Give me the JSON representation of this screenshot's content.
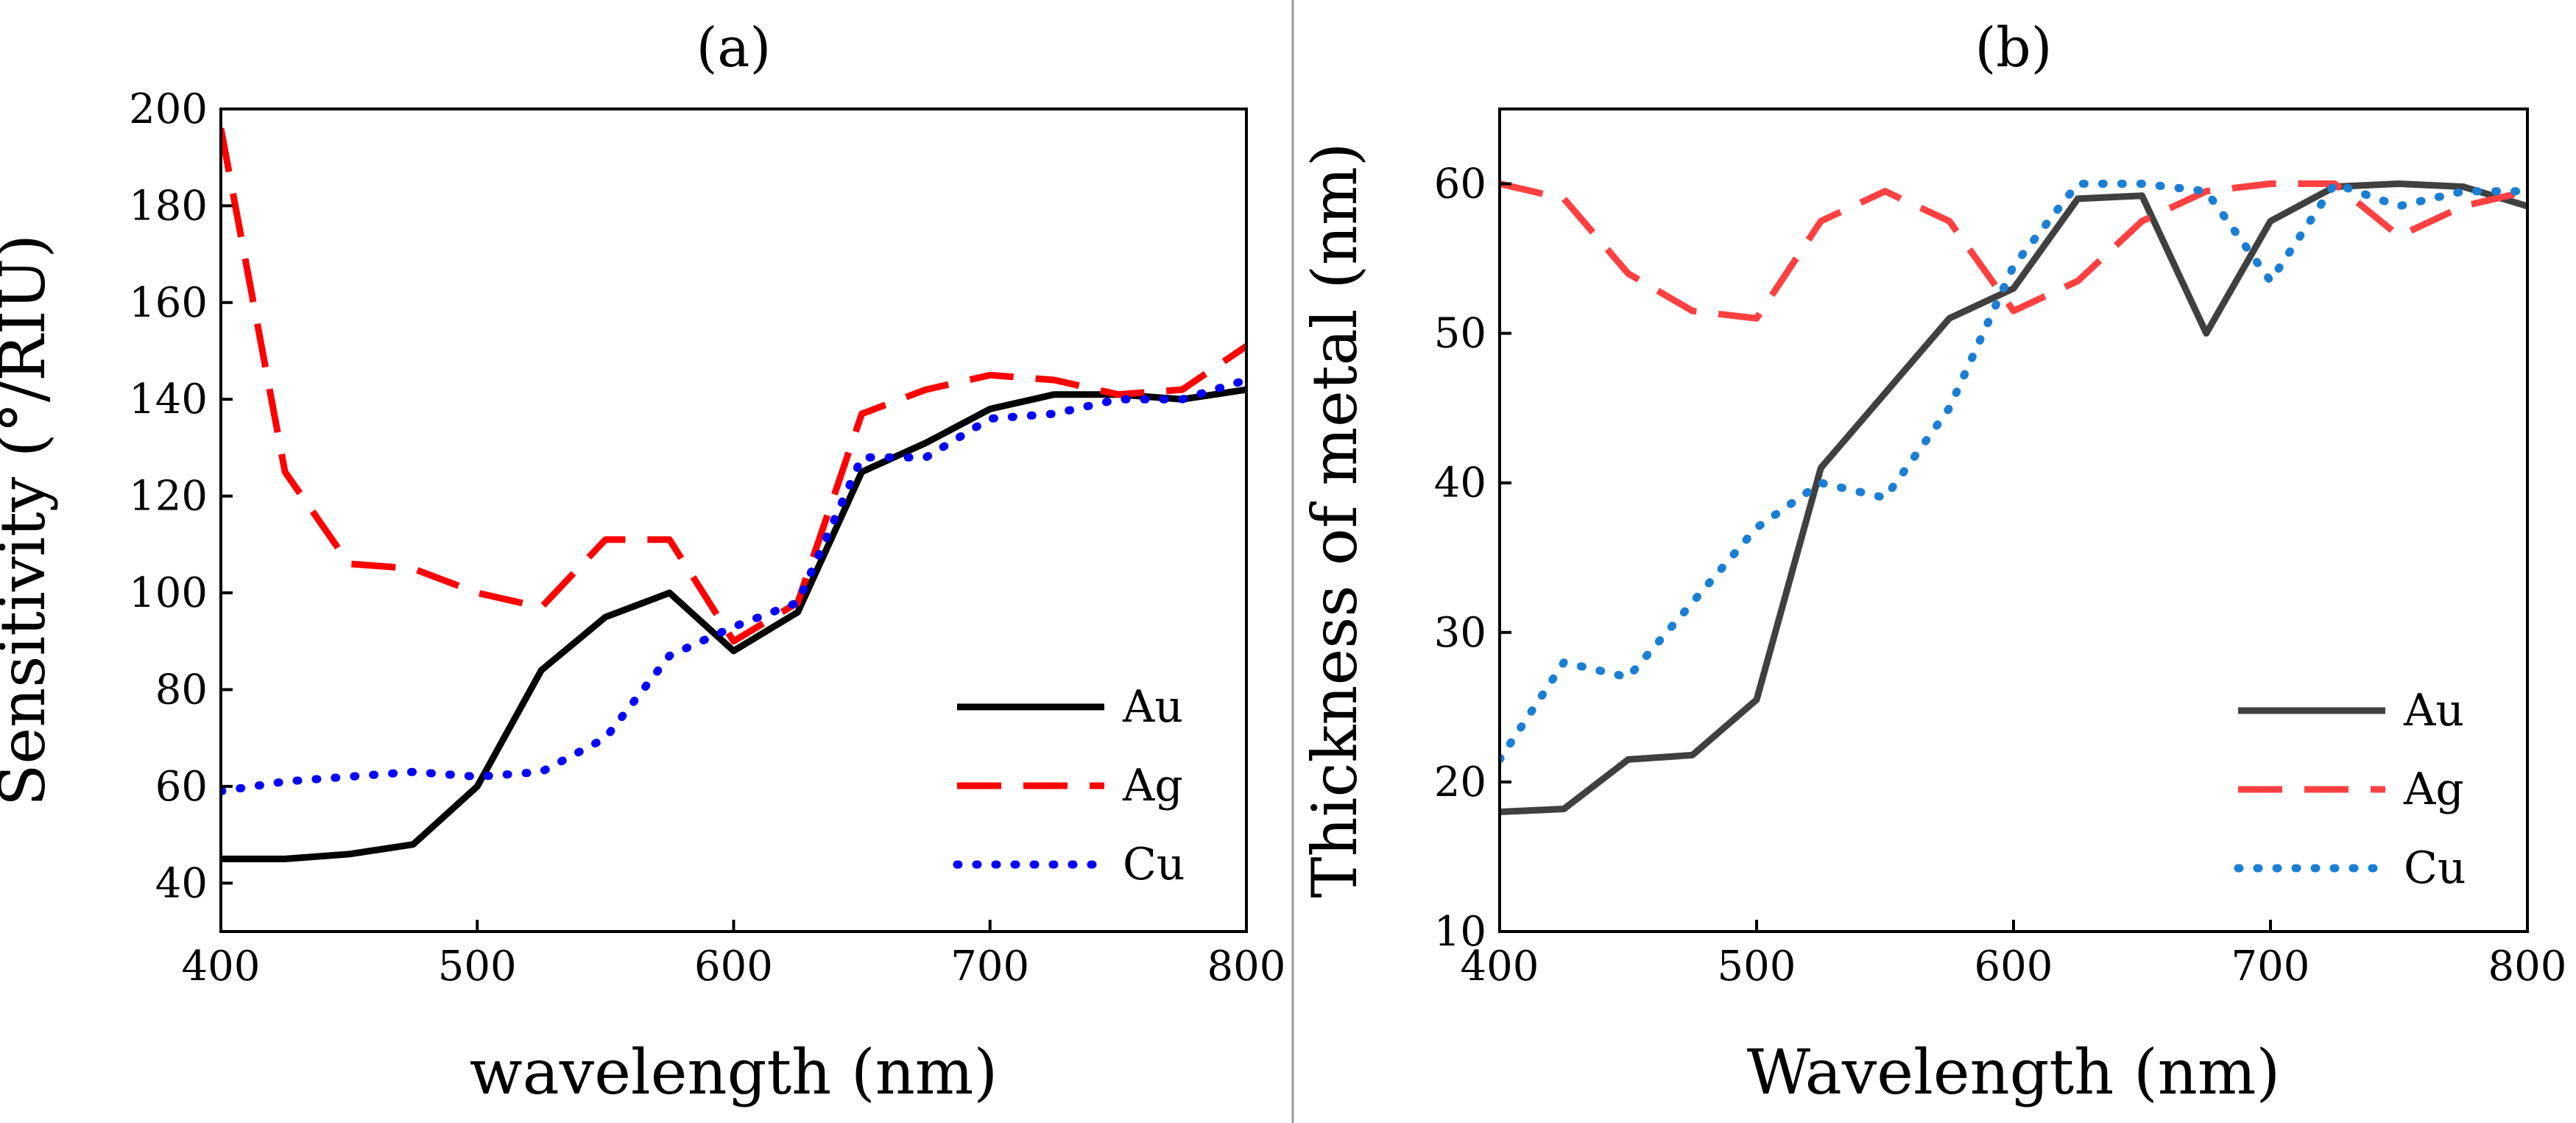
{
  "chart_data": [
    {
      "type": "line",
      "panel_title": "(a)",
      "xlabel": "wavelength (nm)",
      "ylabel": "Sensitivity (°/RIU)",
      "xlim": [
        400,
        800
      ],
      "ylim": [
        30,
        200
      ],
      "xticks": [
        400,
        500,
        600,
        700,
        800
      ],
      "yticks": [
        40,
        60,
        80,
        100,
        120,
        140,
        160,
        180,
        200
      ],
      "legend_position": "bottom-right",
      "series": [
        {
          "name": "Au",
          "style": "solid",
          "color": "#000000",
          "x": [
            400,
            425,
            450,
            475,
            500,
            525,
            550,
            575,
            600,
            625,
            650,
            675,
            700,
            725,
            750,
            775,
            800
          ],
          "y": [
            45,
            45,
            46,
            48,
            60,
            84,
            95,
            100,
            88,
            96,
            125,
            131,
            138,
            141,
            141,
            140,
            142
          ]
        },
        {
          "name": "Ag",
          "style": "dashed",
          "color": "#ff0000",
          "x": [
            400,
            425,
            450,
            475,
            500,
            525,
            550,
            575,
            600,
            625,
            650,
            675,
            700,
            725,
            750,
            775,
            800
          ],
          "y": [
            196,
            125,
            106,
            105,
            100,
            97,
            111,
            111,
            90,
            98,
            137,
            142,
            145,
            144,
            141,
            142,
            151
          ]
        },
        {
          "name": "Cu",
          "style": "dotted",
          "color": "#0000ff",
          "x": [
            400,
            425,
            450,
            475,
            500,
            525,
            550,
            575,
            600,
            625,
            650,
            675,
            700,
            725,
            750,
            775,
            800
          ],
          "y": [
            59,
            61,
            62,
            63,
            62,
            63,
            70,
            87,
            93,
            98,
            128,
            128,
            136,
            137,
            140,
            140,
            144
          ]
        }
      ]
    },
    {
      "type": "line",
      "panel_title": "(b)",
      "xlabel": "Wavelength (nm)",
      "ylabel": "Thickness of metal (nm)",
      "xlim": [
        400,
        800
      ],
      "ylim": [
        10,
        65
      ],
      "xticks": [
        400,
        500,
        600,
        700,
        800
      ],
      "yticks": [
        10,
        20,
        30,
        40,
        50,
        60
      ],
      "legend_position": "bottom-right",
      "series": [
        {
          "name": "Au",
          "style": "solid",
          "color": "#404040",
          "x": [
            400,
            425,
            450,
            475,
            500,
            525,
            550,
            575,
            600,
            625,
            650,
            675,
            700,
            725,
            750,
            775,
            800
          ],
          "y": [
            18,
            18.2,
            21.5,
            21.8,
            25.5,
            41,
            46,
            51,
            53,
            59,
            59.2,
            50,
            57.5,
            59.8,
            60,
            59.8,
            58.5
          ]
        },
        {
          "name": "Ag",
          "style": "dashed",
          "color": "#ff4040",
          "x": [
            400,
            425,
            450,
            475,
            500,
            525,
            550,
            575,
            600,
            625,
            650,
            675,
            700,
            725,
            750,
            775,
            800
          ],
          "y": [
            60,
            59,
            54,
            51.5,
            51,
            57.5,
            59.5,
            57.5,
            51.5,
            53.5,
            57.5,
            59.5,
            60,
            60,
            56.5,
            58.5,
            59.5
          ]
        },
        {
          "name": "Cu",
          "style": "dotted",
          "color": "#1a7fd4",
          "x": [
            400,
            425,
            450,
            475,
            500,
            525,
            550,
            575,
            600,
            625,
            650,
            675,
            700,
            725,
            750,
            775,
            800
          ],
          "y": [
            21.5,
            28,
            27,
            32,
            37,
            40,
            39,
            45,
            54.5,
            60,
            60,
            59.5,
            53.5,
            60,
            58.5,
            59.5,
            59.5
          ]
        }
      ]
    }
  ]
}
